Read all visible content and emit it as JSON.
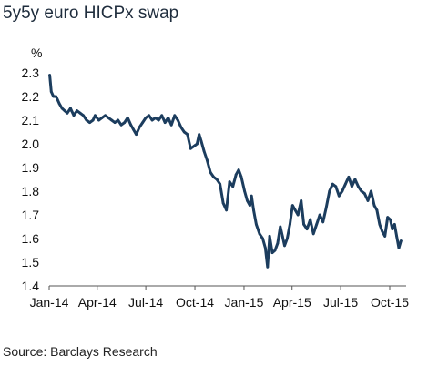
{
  "title": "5y5y euro HICPx swap",
  "source": "Source: Barclays Research",
  "chart_data": {
    "type": "line",
    "title": "5y5y euro HICPx swap",
    "xlabel": "",
    "ylabel": "%",
    "xlim": [
      "2014-01-01",
      "2015-10-31"
    ],
    "ylim": [
      1.4,
      2.3
    ],
    "yticks": [
      1.4,
      1.5,
      1.6,
      1.7,
      1.8,
      1.9,
      2.0,
      2.1,
      2.2,
      2.3
    ],
    "ytick_labels": [
      "1.4",
      "1.5",
      "1.6",
      "1.7",
      "1.8",
      "1.9",
      "2.0",
      "2.1",
      "2.2",
      "2.3"
    ],
    "xticks": [
      "2014-01-01",
      "2014-04-01",
      "2014-07-01",
      "2014-10-01",
      "2015-01-01",
      "2015-04-01",
      "2015-07-01",
      "2015-10-01"
    ],
    "xtick_labels": [
      "Jan-14",
      "Apr-14",
      "Jul-14",
      "Oct-14",
      "Jan-15",
      "Apr-15",
      "Jul-15",
      "Oct-15"
    ],
    "grid": false,
    "color": "#1c3d5e",
    "series": [
      {
        "name": "",
        "x": [
          "2014-01-02",
          "2014-01-05",
          "2014-01-09",
          "2014-01-14",
          "2014-01-20",
          "2014-01-25",
          "2014-01-30",
          "2014-02-04",
          "2014-02-10",
          "2014-02-16",
          "2014-02-22",
          "2014-02-28",
          "2014-03-06",
          "2014-03-12",
          "2014-03-18",
          "2014-03-24",
          "2014-03-28",
          "2014-04-04",
          "2014-04-10",
          "2014-04-16",
          "2014-04-22",
          "2014-04-28",
          "2014-05-04",
          "2014-05-10",
          "2014-05-16",
          "2014-05-22",
          "2014-05-28",
          "2014-06-03",
          "2014-06-08",
          "2014-06-13",
          "2014-06-19",
          "2014-06-25",
          "2014-07-01",
          "2014-07-07",
          "2014-07-13",
          "2014-07-19",
          "2014-07-25",
          "2014-07-31",
          "2014-08-06",
          "2014-08-12",
          "2014-08-18",
          "2014-08-24",
          "2014-08-30",
          "2014-09-05",
          "2014-09-11",
          "2014-09-17",
          "2014-09-23",
          "2014-09-29",
          "2014-10-05",
          "2014-10-09",
          "2014-10-13",
          "2014-10-18",
          "2014-10-24",
          "2014-10-30",
          "2014-11-05",
          "2014-11-11",
          "2014-11-17",
          "2014-11-23",
          "2014-11-29",
          "2014-12-05",
          "2014-12-11",
          "2014-12-17",
          "2014-12-22",
          "2014-12-27",
          "2015-01-02",
          "2015-01-07",
          "2015-01-12",
          "2015-01-15",
          "2015-01-19",
          "2015-01-24",
          "2015-01-30",
          "2015-02-05",
          "2015-02-10",
          "2015-02-14",
          "2015-02-18",
          "2015-02-23",
          "2015-02-28",
          "2015-03-05",
          "2015-03-10",
          "2015-03-14",
          "2015-03-18",
          "2015-03-23",
          "2015-03-28",
          "2015-04-02",
          "2015-04-07",
          "2015-04-12",
          "2015-04-18",
          "2015-04-23",
          "2015-04-29",
          "2015-05-05",
          "2015-05-11",
          "2015-05-17",
          "2015-05-23",
          "2015-05-29",
          "2015-06-04",
          "2015-06-10",
          "2015-06-16",
          "2015-06-22",
          "2015-06-28",
          "2015-07-04",
          "2015-07-10",
          "2015-07-16",
          "2015-07-22",
          "2015-07-28",
          "2015-08-03",
          "2015-08-09",
          "2015-08-15",
          "2015-08-21",
          "2015-08-27",
          "2015-09-02",
          "2015-09-07",
          "2015-09-12",
          "2015-09-17",
          "2015-09-22",
          "2015-09-27",
          "2015-10-02",
          "2015-10-06",
          "2015-10-10",
          "2015-10-14",
          "2015-10-18",
          "2015-10-22"
        ],
        "values": [
          2.29,
          2.22,
          2.2,
          2.2,
          2.17,
          2.15,
          2.14,
          2.13,
          2.15,
          2.12,
          2.14,
          2.13,
          2.12,
          2.1,
          2.09,
          2.1,
          2.12,
          2.1,
          2.11,
          2.12,
          2.11,
          2.1,
          2.09,
          2.1,
          2.08,
          2.09,
          2.11,
          2.08,
          2.06,
          2.04,
          2.07,
          2.09,
          2.11,
          2.12,
          2.1,
          2.11,
          2.1,
          2.12,
          2.09,
          2.11,
          2.08,
          2.12,
          2.1,
          2.07,
          2.05,
          2.04,
          1.98,
          1.99,
          2.0,
          2.04,
          2.01,
          1.97,
          1.93,
          1.88,
          1.86,
          1.85,
          1.83,
          1.75,
          1.72,
          1.84,
          1.82,
          1.87,
          1.89,
          1.86,
          1.8,
          1.76,
          1.74,
          1.78,
          1.72,
          1.66,
          1.62,
          1.6,
          1.56,
          1.48,
          1.61,
          1.54,
          1.55,
          1.58,
          1.65,
          1.61,
          1.57,
          1.6,
          1.66,
          1.74,
          1.72,
          1.7,
          1.76,
          1.66,
          1.64,
          1.68,
          1.62,
          1.66,
          1.7,
          1.67,
          1.73,
          1.8,
          1.83,
          1.82,
          1.78,
          1.8,
          1.83,
          1.86,
          1.82,
          1.85,
          1.82,
          1.8,
          1.79,
          1.76,
          1.8,
          1.74,
          1.72,
          1.66,
          1.63,
          1.61,
          1.69,
          1.68,
          1.64,
          1.66,
          1.61,
          1.56,
          1.59
        ]
      }
    ]
  }
}
